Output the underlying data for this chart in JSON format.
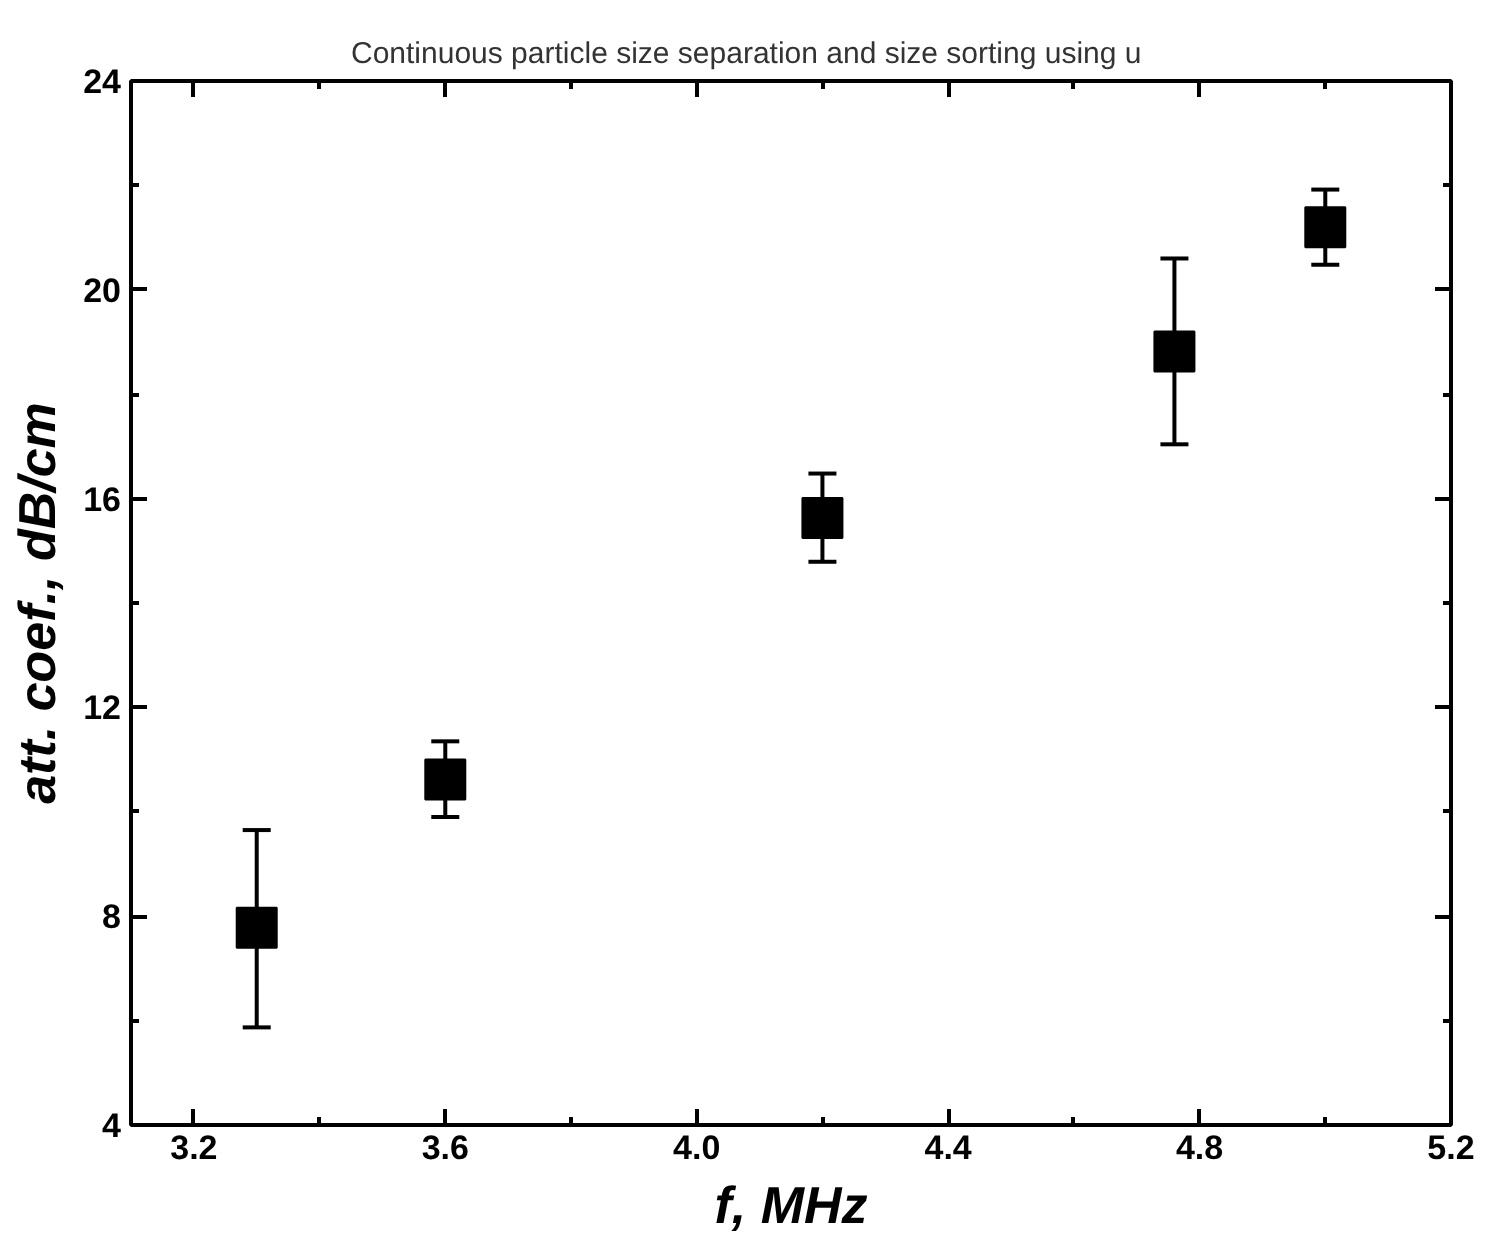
{
  "chart_data": {
    "type": "scatter",
    "title": "Continuous particle size separation and size sorting using u",
    "xlabel": "f, MHz",
    "ylabel": "att. coef., dB/cm",
    "x": [
      3.3,
      3.6,
      4.2,
      4.76,
      5.0
    ],
    "series": [
      {
        "color": "#000000",
        "values": [
          7.78,
          10.62,
          15.63,
          18.82,
          21.2
        ],
        "errors": [
          [
            5.87,
            9.65
          ],
          [
            9.9,
            11.35
          ],
          [
            14.79,
            16.48
          ],
          [
            17.04,
            20.6
          ],
          [
            20.48,
            21.92
          ]
        ]
      }
    ],
    "marker": "square",
    "grid": false,
    "xlim": [
      3.1,
      5.2
    ],
    "ylim": [
      4,
      24
    ],
    "xticks": [
      3.2,
      {
        "value": 3.4,
        "label": null
      },
      3.6,
      {
        "value": 3.8,
        "label": null
      },
      "4.0",
      {
        "value": 4.2,
        "label": null
      },
      4.4,
      {
        "value": 4.6,
        "label": null
      },
      4.8,
      {
        "value": 5.0,
        "label": null
      },
      5.2
    ],
    "yticks": [
      4,
      {
        "value": 6,
        "label": null
      },
      8,
      {
        "value": 10,
        "label": null
      },
      12,
      {
        "value": 14,
        "label": null
      },
      16,
      {
        "value": 18,
        "label": null
      },
      20,
      {
        "value": 22,
        "label": null
      },
      24
    ]
  }
}
